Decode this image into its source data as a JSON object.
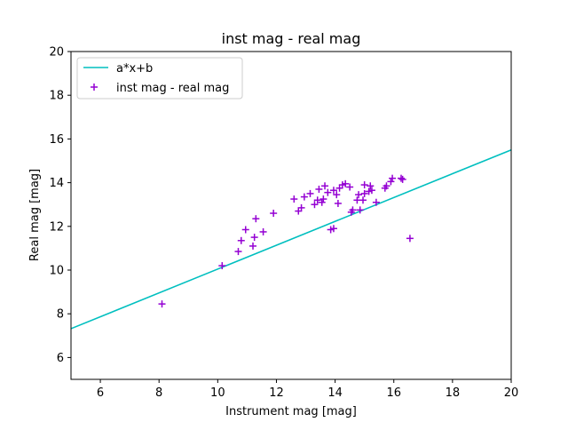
{
  "chart_data": {
    "type": "scatter",
    "title": "inst mag - real mag",
    "xlabel": "Instrument mag [mag]",
    "ylabel": "Real mag [mag]",
    "xlim": [
      5,
      20
    ],
    "ylim": [
      5,
      20
    ],
    "xticks": [
      "6",
      "8",
      "10",
      "12",
      "14",
      "16",
      "18",
      "20"
    ],
    "yticks": [
      "6",
      "8",
      "10",
      "12",
      "14",
      "16",
      "18",
      "20"
    ],
    "grid": false,
    "legend_position": "top-left",
    "line": {
      "name": "a*x+b",
      "color": "#00bfbf",
      "x": [
        5,
        20
      ],
      "y": [
        7.32,
        15.5
      ]
    },
    "scatter": {
      "name": "inst mag - real mag",
      "color": "#9400d3",
      "marker": "plus",
      "points": [
        [
          8.1,
          8.45
        ],
        [
          10.15,
          10.2
        ],
        [
          10.7,
          10.85
        ],
        [
          10.8,
          11.35
        ],
        [
          10.95,
          11.85
        ],
        [
          11.2,
          11.1
        ],
        [
          11.25,
          11.5
        ],
        [
          11.3,
          12.35
        ],
        [
          11.55,
          11.75
        ],
        [
          11.9,
          12.6
        ],
        [
          12.6,
          13.25
        ],
        [
          12.75,
          12.7
        ],
        [
          12.85,
          12.85
        ],
        [
          12.95,
          13.35
        ],
        [
          13.15,
          13.5
        ],
        [
          13.3,
          13.0
        ],
        [
          13.4,
          13.2
        ],
        [
          13.45,
          13.7
        ],
        [
          13.55,
          13.1
        ],
        [
          13.6,
          13.25
        ],
        [
          13.65,
          13.85
        ],
        [
          13.75,
          13.55
        ],
        [
          13.85,
          11.85
        ],
        [
          13.95,
          13.65
        ],
        [
          13.95,
          11.9
        ],
        [
          14.05,
          13.45
        ],
        [
          14.1,
          13.05
        ],
        [
          14.15,
          13.75
        ],
        [
          14.25,
          13.9
        ],
        [
          14.35,
          13.95
        ],
        [
          14.5,
          13.8
        ],
        [
          14.55,
          12.65
        ],
        [
          14.6,
          12.75
        ],
        [
          14.75,
          13.2
        ],
        [
          14.8,
          13.45
        ],
        [
          14.85,
          12.75
        ],
        [
          14.95,
          13.2
        ],
        [
          15.0,
          13.5
        ],
        [
          15.0,
          13.9
        ],
        [
          15.15,
          13.6
        ],
        [
          15.2,
          13.85
        ],
        [
          15.25,
          13.65
        ],
        [
          15.4,
          13.1
        ],
        [
          15.7,
          13.75
        ],
        [
          15.75,
          13.85
        ],
        [
          15.9,
          14.05
        ],
        [
          15.95,
          14.2
        ],
        [
          16.25,
          14.2
        ],
        [
          16.3,
          14.15
        ],
        [
          16.55,
          11.45
        ]
      ]
    }
  }
}
